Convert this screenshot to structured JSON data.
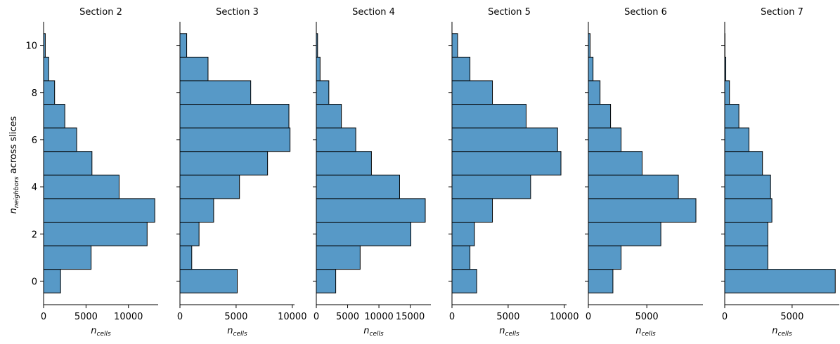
{
  "figure": {
    "ylabel_main": "n",
    "ylabel_sub": "neighbors",
    "ylabel_rest": " across slices",
    "xlabel_main": "n",
    "xlabel_sub": "cells"
  },
  "chart_data": [
    {
      "type": "bar",
      "orientation": "horizontal",
      "title": "Section 2",
      "y": [
        0,
        1,
        2,
        3,
        4,
        5,
        6,
        7,
        8,
        9,
        10
      ],
      "values": [
        2000,
        5600,
        12200,
        13100,
        8900,
        5700,
        3900,
        2500,
        1300,
        600,
        200
      ],
      "xlim": [
        0,
        13500
      ],
      "ylim": [
        -1,
        11
      ],
      "xticks": [
        0,
        5000,
        10000
      ],
      "xtick_labels": [
        "0",
        "5000",
        "10000"
      ],
      "yticks": [
        0,
        2,
        4,
        6,
        8,
        10
      ],
      "ytick_labels": [
        "0",
        "2",
        "4",
        "6",
        "8",
        "10"
      ]
    },
    {
      "type": "bar",
      "orientation": "horizontal",
      "title": "Section 3",
      "y": [
        0,
        1,
        2,
        3,
        4,
        5,
        6,
        7,
        8,
        9,
        10
      ],
      "values": [
        5100,
        1050,
        1700,
        3000,
        5300,
        7800,
        9800,
        9700,
        6300,
        2500,
        600
      ],
      "xlim": [
        0,
        10200
      ],
      "ylim": [
        -1,
        11
      ],
      "xticks": [
        0,
        5000,
        10000
      ],
      "xtick_labels": [
        "0",
        "5000",
        "10000"
      ],
      "yticks": [
        0,
        2,
        4,
        6,
        8,
        10
      ],
      "ytick_labels": []
    },
    {
      "type": "bar",
      "orientation": "horizontal",
      "title": "Section 4",
      "y": [
        0,
        1,
        2,
        3,
        4,
        5,
        6,
        7,
        8,
        9,
        10
      ],
      "values": [
        3100,
        7000,
        15100,
        17400,
        13300,
        8800,
        6300,
        4000,
        2000,
        600,
        200
      ],
      "xlim": [
        0,
        18300
      ],
      "ylim": [
        -1,
        11
      ],
      "xticks": [
        0,
        5000,
        10000,
        15000
      ],
      "xtick_labels": [
        "0",
        "5000",
        "10000",
        "15000"
      ],
      "yticks": [
        0,
        2,
        4,
        6,
        8,
        10
      ],
      "ytick_labels": []
    },
    {
      "type": "bar",
      "orientation": "horizontal",
      "title": "Section 5",
      "y": [
        0,
        1,
        2,
        3,
        4,
        5,
        6,
        7,
        8,
        9,
        10
      ],
      "values": [
        2200,
        1600,
        2000,
        3600,
        7000,
        9700,
        9400,
        6600,
        3600,
        1600,
        500
      ],
      "xlim": [
        0,
        10200
      ],
      "ylim": [
        -1,
        11
      ],
      "xticks": [
        0,
        5000,
        10000
      ],
      "xtick_labels": [
        "0",
        "5000",
        "10000"
      ],
      "yticks": [
        0,
        2,
        4,
        6,
        8,
        10
      ],
      "ytick_labels": []
    },
    {
      "type": "bar",
      "orientation": "horizontal",
      "title": "Section 6",
      "y": [
        0,
        1,
        2,
        3,
        4,
        5,
        6,
        7,
        8,
        9,
        10
      ],
      "values": [
        2100,
        2800,
        6200,
        9200,
        7700,
        4600,
        2800,
        1900,
        1000,
        400,
        150
      ],
      "xlim": [
        0,
        9800
      ],
      "ylim": [
        -1,
        11
      ],
      "xticks": [
        0,
        5000
      ],
      "xtick_labels": [
        "0",
        "5000"
      ],
      "yticks": [
        0,
        2,
        4,
        6,
        8,
        10
      ],
      "ytick_labels": []
    },
    {
      "type": "bar",
      "orientation": "horizontal",
      "title": "Section 7",
      "y": [
        0,
        1,
        2,
        3,
        4,
        5,
        6,
        7,
        8,
        9,
        10
      ],
      "values": [
        8200,
        3200,
        3200,
        3500,
        3400,
        2800,
        1800,
        1050,
        350,
        80,
        20
      ],
      "xlim": [
        0,
        8500
      ],
      "ylim": [
        -1,
        11
      ],
      "xticks": [
        0,
        5000
      ],
      "xtick_labels": [
        "0",
        "5000"
      ],
      "yticks": [
        0,
        2,
        4,
        6,
        8,
        10
      ],
      "ytick_labels": []
    }
  ]
}
